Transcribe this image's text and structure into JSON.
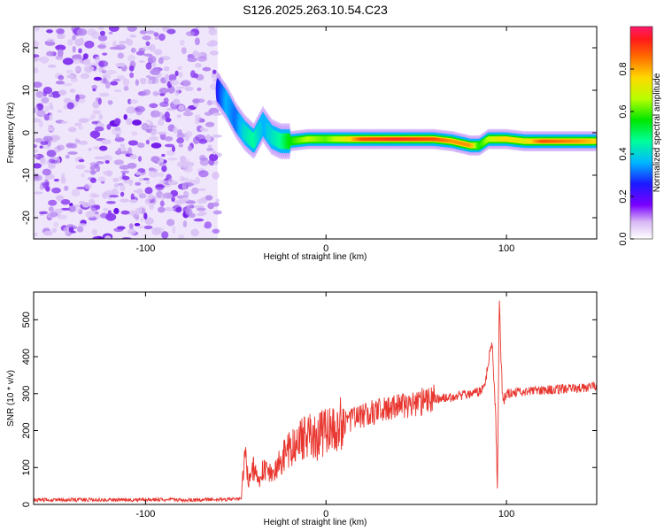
{
  "title": "S126.2025.263.10.54.C23",
  "chart_data": [
    {
      "type": "heatmap",
      "name": "spectrogram",
      "xlabel": "Height of straight line (km)",
      "ylabel": "Frequency (Hz)",
      "xlim": [
        -162,
        150
      ],
      "ylim": [
        -25,
        25
      ],
      "x_ticks": [
        -100,
        0,
        100
      ],
      "y_ticks": [
        -20,
        -10,
        0,
        10,
        20
      ],
      "noise_region_x": [
        -162,
        -60
      ],
      "ridge": {
        "x": [
          -60,
          -55,
          -50,
          -45,
          -40,
          -35,
          -30,
          -25,
          -20,
          -10,
          0,
          10,
          20,
          40,
          60,
          70,
          80,
          85,
          90,
          100,
          110,
          120,
          140,
          150
        ],
        "y": [
          10,
          7,
          3,
          0,
          -2,
          2,
          -1,
          -2,
          -2,
          -1.5,
          -1.5,
          -1.5,
          -1.5,
          -1.5,
          -1.5,
          -2,
          -3,
          -3,
          -1.5,
          -1.5,
          -2,
          -2,
          -2,
          -2
        ],
        "amplitude": [
          0.3,
          0.4,
          0.35,
          0.45,
          0.5,
          0.4,
          0.45,
          0.5,
          0.6,
          0.7,
          0.65,
          0.75,
          0.9,
          0.95,
          0.9,
          0.85,
          0.85,
          0.6,
          0.7,
          0.8,
          0.75,
          0.9,
          0.85,
          0.8
        ]
      },
      "colorbar": {
        "label": "Normalized spectral amplitude",
        "range": [
          0,
          1
        ],
        "ticks": [
          0.0,
          0.2,
          0.4,
          0.6,
          0.8
        ]
      }
    },
    {
      "type": "line",
      "name": "snr",
      "xlabel": "Height of straight line (km)",
      "ylabel": "SNR (10 * v/v)",
      "xlim": [
        -162,
        150
      ],
      "ylim": [
        0,
        575
      ],
      "x_ticks": [
        -100,
        0,
        100
      ],
      "y_ticks": [
        0,
        100,
        200,
        300,
        400,
        500
      ],
      "color": "#e8352e",
      "series": [
        {
          "name": "SNR",
          "x": [
            -162,
            -140,
            -120,
            -100,
            -80,
            -60,
            -47,
            -45,
            -43,
            -40,
            -37,
            -35,
            -30,
            -25,
            -20,
            -15,
            -10,
            -5,
            0,
            5,
            10,
            20,
            30,
            40,
            50,
            60,
            70,
            80,
            85,
            88,
            92,
            94,
            95,
            96,
            97,
            98,
            100,
            110,
            120,
            130,
            140,
            150
          ],
          "y": [
            12,
            13,
            12,
            13,
            12,
            13,
            15,
            150,
            60,
            100,
            55,
            95,
            80,
            120,
            150,
            170,
            190,
            180,
            200,
            210,
            220,
            240,
            255,
            265,
            275,
            285,
            290,
            300,
            305,
            320,
            450,
            250,
            35,
            575,
            380,
            280,
            300,
            305,
            310,
            312,
            315,
            318
          ]
        }
      ]
    }
  ]
}
